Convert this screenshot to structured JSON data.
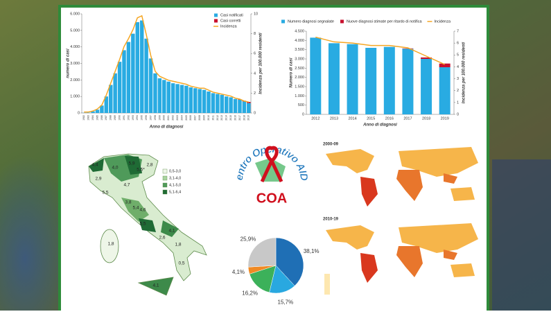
{
  "chart_data": [
    {
      "type": "bar",
      "x_label": "Anno di diagnosi",
      "y_label": "numero di casi",
      "y2_label": "Incidenza per 100.000 residenti",
      "categories": [
        "1982",
        "1983",
        "1984",
        "1985",
        "1986",
        "1987",
        "1988",
        "1989",
        "1990",
        "1991",
        "1992",
        "1993",
        "1994",
        "1995",
        "1996",
        "1997",
        "1998",
        "1999",
        "2000",
        "2001",
        "2002",
        "2003",
        "2004",
        "2005",
        "2006",
        "2007",
        "2008",
        "2009",
        "2010",
        "2011",
        "2012",
        "2013",
        "2014",
        "2015",
        "2016",
        "2017",
        "2018",
        "2019"
      ],
      "series": [
        {
          "name": "Casi notificati",
          "color": "#29abe2",
          "values": [
            10,
            20,
            100,
            200,
            450,
            1000,
            1700,
            2400,
            3100,
            3800,
            4300,
            4800,
            5500,
            5600,
            4500,
            3300,
            2400,
            2100,
            2000,
            1900,
            1800,
            1750,
            1700,
            1650,
            1550,
            1500,
            1450,
            1400,
            1300,
            1200,
            1150,
            1100,
            1000,
            950,
            850,
            800,
            700,
            600
          ]
        },
        {
          "name": "Casi corretti",
          "color": "#c8102e",
          "values": [
            null,
            null,
            null,
            null,
            null,
            null,
            null,
            null,
            null,
            null,
            null,
            null,
            null,
            null,
            null,
            null,
            null,
            null,
            null,
            null,
            null,
            null,
            null,
            null,
            null,
            null,
            null,
            null,
            null,
            null,
            null,
            null,
            null,
            null,
            null,
            20,
            40,
            70
          ]
        },
        {
          "name": "Incidenza",
          "color": "#f5a623",
          "axis": "y2",
          "values": [
            0.1,
            0.1,
            0.2,
            0.4,
            0.8,
            1.8,
            3.0,
            4.2,
            5.4,
            6.7,
            7.5,
            8.4,
            9.6,
            9.8,
            7.9,
            5.8,
            4.2,
            3.7,
            3.5,
            3.3,
            3.2,
            3.1,
            3.0,
            2.9,
            2.7,
            2.6,
            2.5,
            2.5,
            2.3,
            2.1,
            2.0,
            1.9,
            1.8,
            1.7,
            1.5,
            1.4,
            1.2,
            1.1
          ]
        }
      ],
      "ylim": [
        0,
        6000
      ],
      "yticks": [
        0,
        {
          "value": 1000,
          "label": "1.000"
        },
        {
          "value": 2000,
          "label": "2.000"
        },
        {
          "value": 3000,
          "label": "3.000"
        },
        {
          "value": 4000,
          "label": "4.000"
        },
        {
          "value": 5000,
          "label": "5.000"
        },
        {
          "value": 6000,
          "label": "6.000"
        }
      ],
      "y2lim": [
        0,
        10
      ],
      "y2ticks": [
        0,
        2,
        4,
        6,
        8,
        10
      ],
      "legend": "upper right"
    },
    {
      "type": "bar",
      "x_label": "Anno di diagnosi",
      "y_label": "Numero di casi",
      "y2_label": "Incidenza per 100.000 residenti",
      "categories": [
        "2012",
        "2013",
        "2014",
        "2015",
        "2016",
        "2017",
        "2018",
        "2019"
      ],
      "series": [
        {
          "name": "Numero diagnosi segnalate",
          "color": "#29abe2",
          "values": [
            4150,
            3850,
            3800,
            3600,
            3650,
            3550,
            3000,
            2550
          ]
        },
        {
          "name": "Nuove diagnosi stimate per ritardo di notifica",
          "color": "#c8102e",
          "values": [
            null,
            null,
            null,
            null,
            null,
            20,
            80,
            200
          ]
        },
        {
          "name": "Incidenza",
          "color": "#f5a623",
          "axis": "y2",
          "values": [
            6.5,
            6.1,
            6.0,
            5.8,
            5.8,
            5.6,
            4.9,
            4.2
          ]
        }
      ],
      "ylim": [
        0,
        4500
      ],
      "yticks": [
        0,
        500,
        {
          "value": 1000,
          "label": "1.000"
        },
        {
          "value": 1500,
          "label": "1.500"
        },
        {
          "value": 2000,
          "label": "2.000"
        },
        {
          "value": 2500,
          "label": "2.500"
        },
        {
          "value": 3000,
          "label": "3.000"
        },
        {
          "value": 3500,
          "label": "3.500"
        },
        {
          "value": 4000,
          "label": "4.000"
        },
        {
          "value": 4500,
          "label": "4.500"
        }
      ],
      "y2lim": [
        0,
        7
      ],
      "y2ticks": [
        0,
        1,
        2,
        3,
        4,
        5,
        6,
        7
      ],
      "legend": "top"
    },
    {
      "type": "pie",
      "values": [
        38.1,
        15.7,
        16.2,
        4.1,
        25.9
      ],
      "value_labels": [
        "38,1%",
        "15,7%",
        "16,2%",
        "4,1%",
        "25,9%"
      ],
      "colors": [
        "#1f6fb5",
        "#29a8e0",
        "#3cb15a",
        "#f08a24",
        "#c8c8c8"
      ]
    }
  ],
  "italy_map": {
    "region_labels": [
      "4,4",
      "4,0",
      "5,9",
      "5,5*",
      "2,8",
      "2,9",
      "4,7",
      "5,5",
      "3,8",
      "5,4",
      "4,6",
      "5,5",
      "4,1",
      "2,6",
      "1,8",
      "0,5",
      "1,8",
      "4,1"
    ],
    "legend": [
      "0,5-3,0",
      "3,1-4,0",
      "4,1-5,0",
      "5,1-6,4"
    ]
  },
  "world_maps": {
    "titles": [
      "2000-09",
      "2010-19"
    ]
  },
  "logo": {
    "ring_text": "Centro Operativo AIDS",
    "acronym": "COA"
  }
}
